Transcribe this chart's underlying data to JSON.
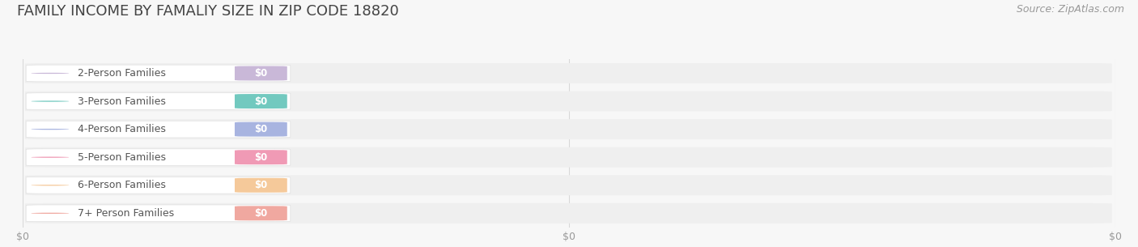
{
  "title": "FAMILY INCOME BY FAMALIY SIZE IN ZIP CODE 18820",
  "source_text": "Source: ZipAtlas.com",
  "categories": [
    "2-Person Families",
    "3-Person Families",
    "4-Person Families",
    "5-Person Families",
    "6-Person Families",
    "7+ Person Families"
  ],
  "values": [
    0,
    0,
    0,
    0,
    0,
    0
  ],
  "bar_colors": [
    "#c9b8d8",
    "#72c9bf",
    "#a8b4e0",
    "#f09ab5",
    "#f5c99a",
    "#f0a8a0"
  ],
  "value_labels": [
    "$0",
    "$0",
    "$0",
    "$0",
    "$0",
    "$0"
  ],
  "x_tick_labels": [
    "$0",
    "$0",
    "$0"
  ],
  "background_color": "#f7f7f7",
  "bar_bg_color": "#efefef",
  "title_fontsize": 13,
  "label_fontsize": 9,
  "value_fontsize": 8.5,
  "source_fontsize": 9,
  "xlim": [
    0,
    1
  ]
}
